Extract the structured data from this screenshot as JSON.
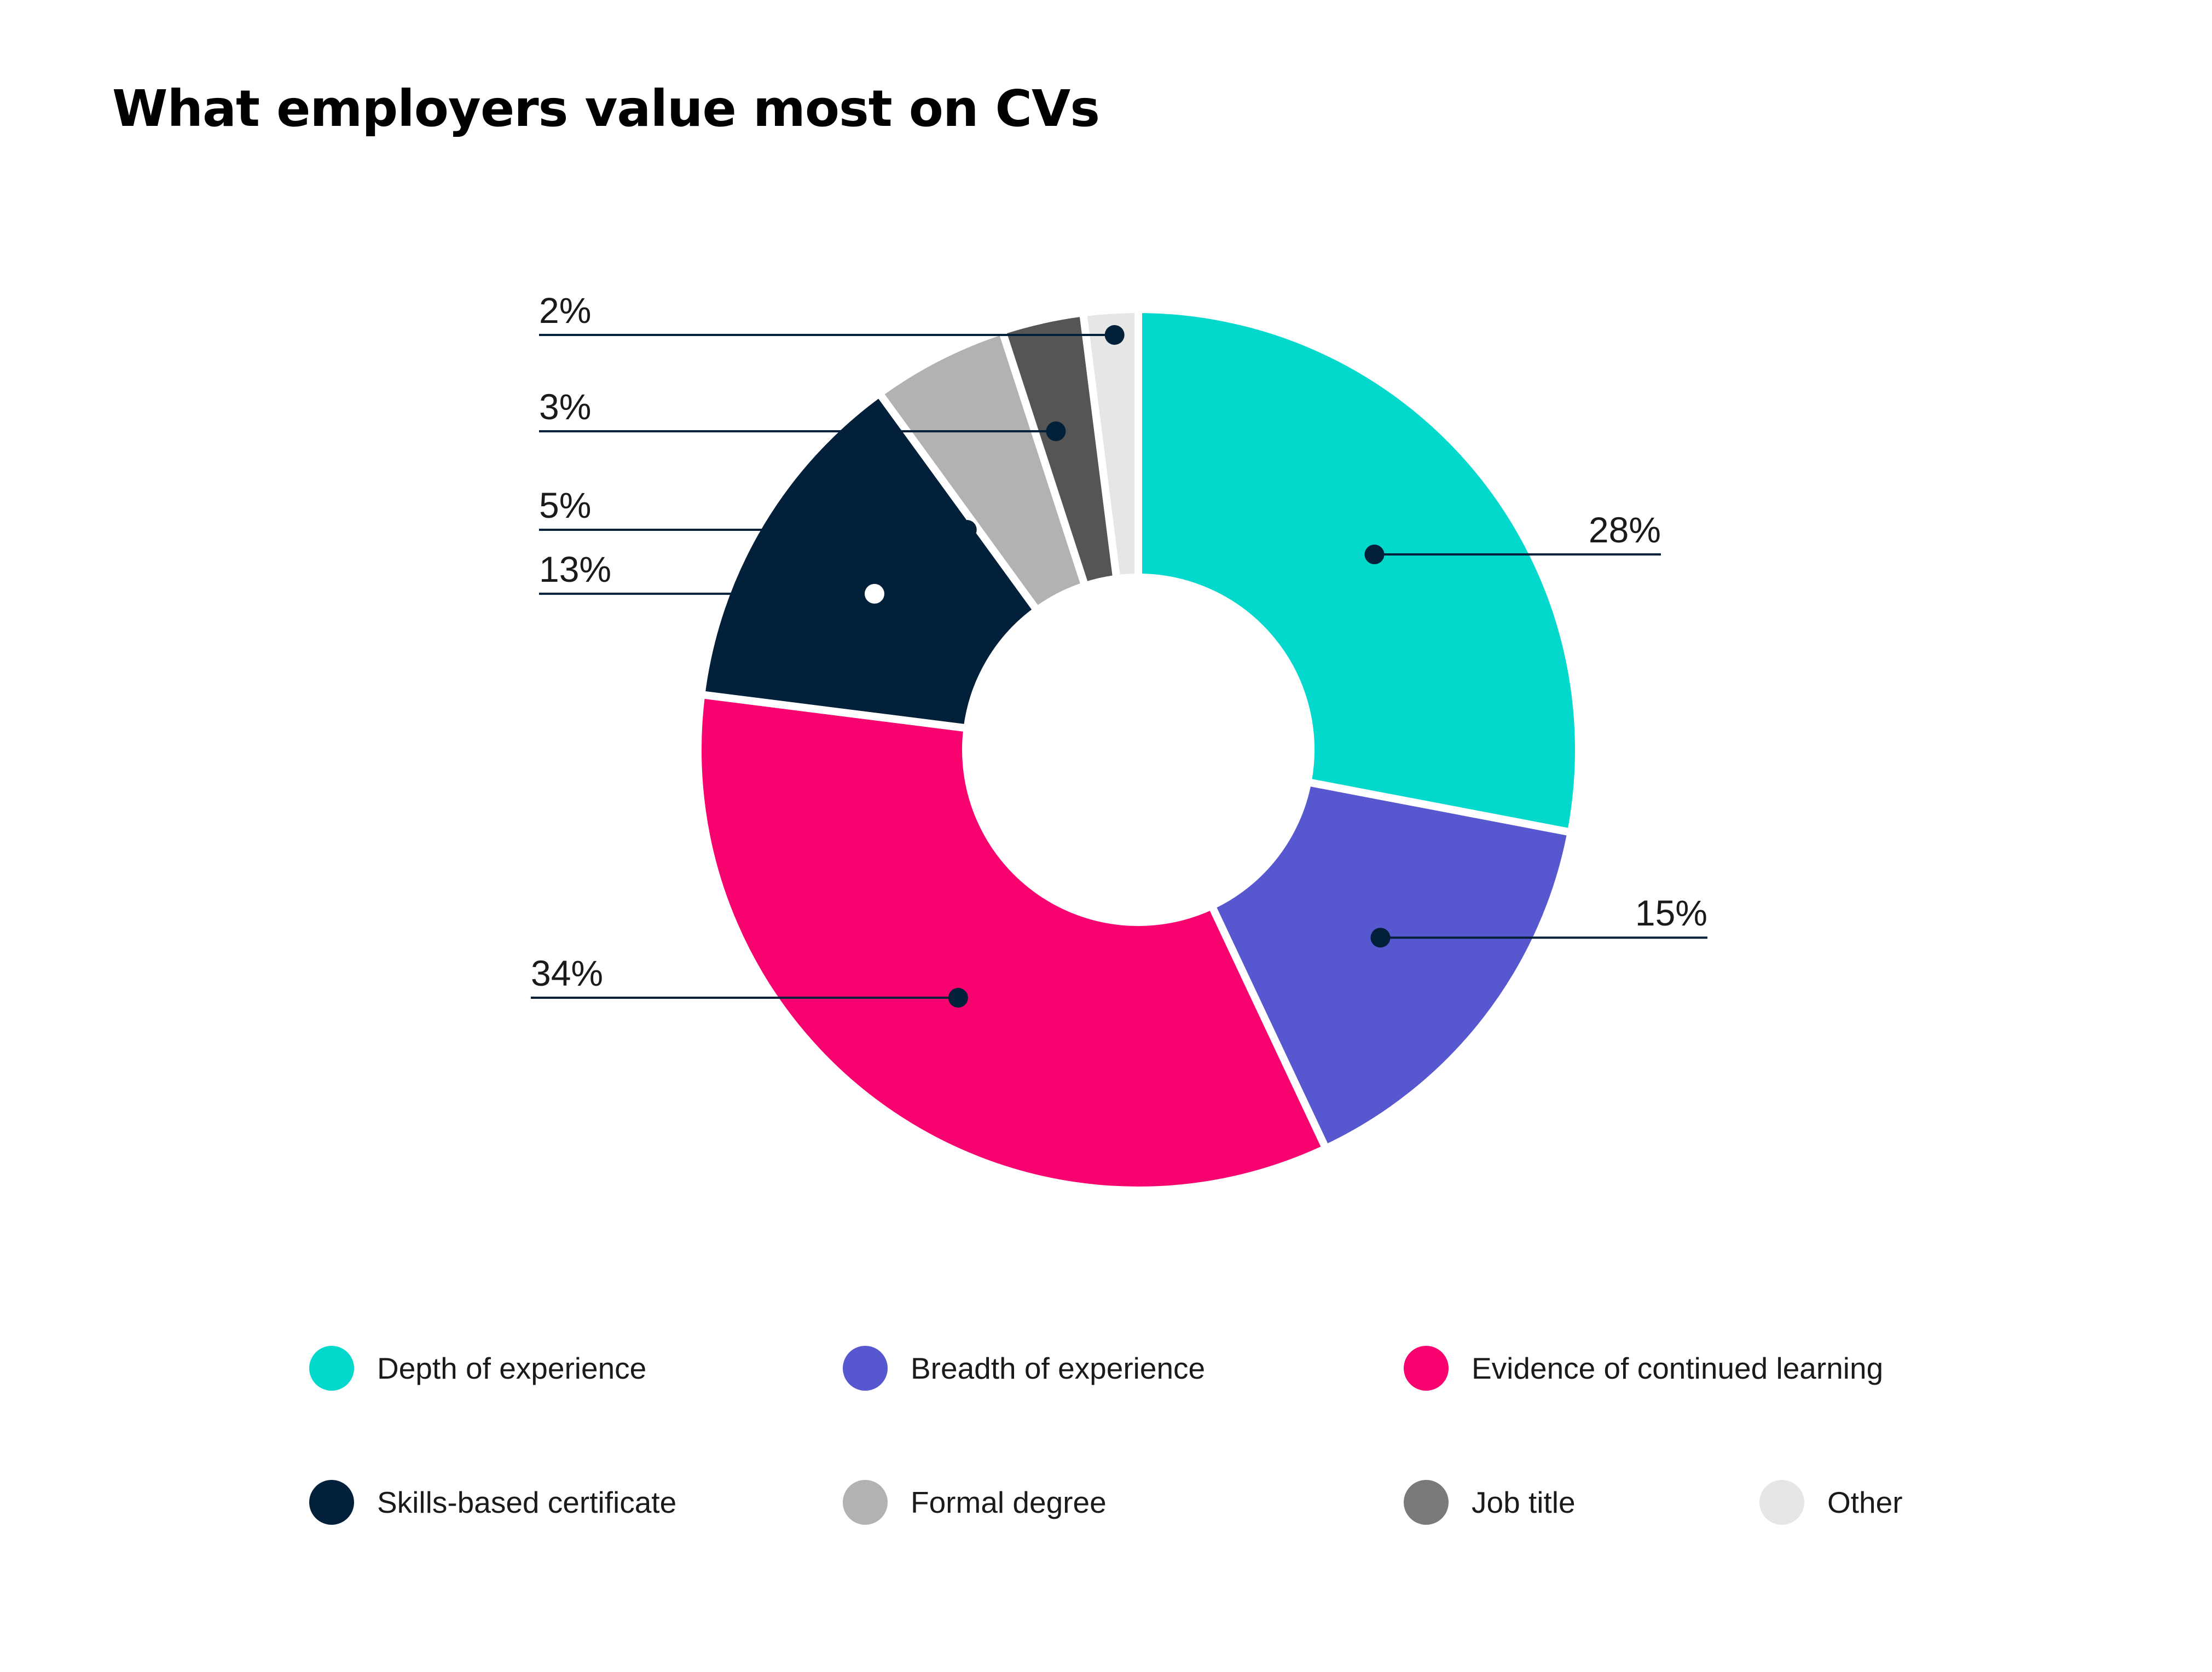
{
  "chart_data": {
    "type": "pie",
    "title": "What employers value most on CVs",
    "categories": [
      "Depth of experience",
      "Breadth of experience",
      "Evidence of continued learning",
      "Skills-based certificate",
      "Formal degree",
      "Job title",
      "Other"
    ],
    "values": [
      28,
      15,
      34,
      13,
      5,
      3,
      2
    ],
    "value_labels": [
      "28%",
      "15%",
      "34%",
      "13%",
      "5%",
      "3%",
      "2%"
    ],
    "colors": [
      "#02d9cc",
      "#5757cf",
      "#f8026f",
      "#02203a",
      "#b2b2b2",
      "#555555",
      "#e6e6e6"
    ],
    "donut": true,
    "legend_position": "bottom"
  },
  "legend_marker_colors": [
    "#02d9cc",
    "#5757cf",
    "#f8026f",
    "#02203a",
    "#b2b2b2",
    "#7a7a7a",
    "#e6e6e6"
  ]
}
